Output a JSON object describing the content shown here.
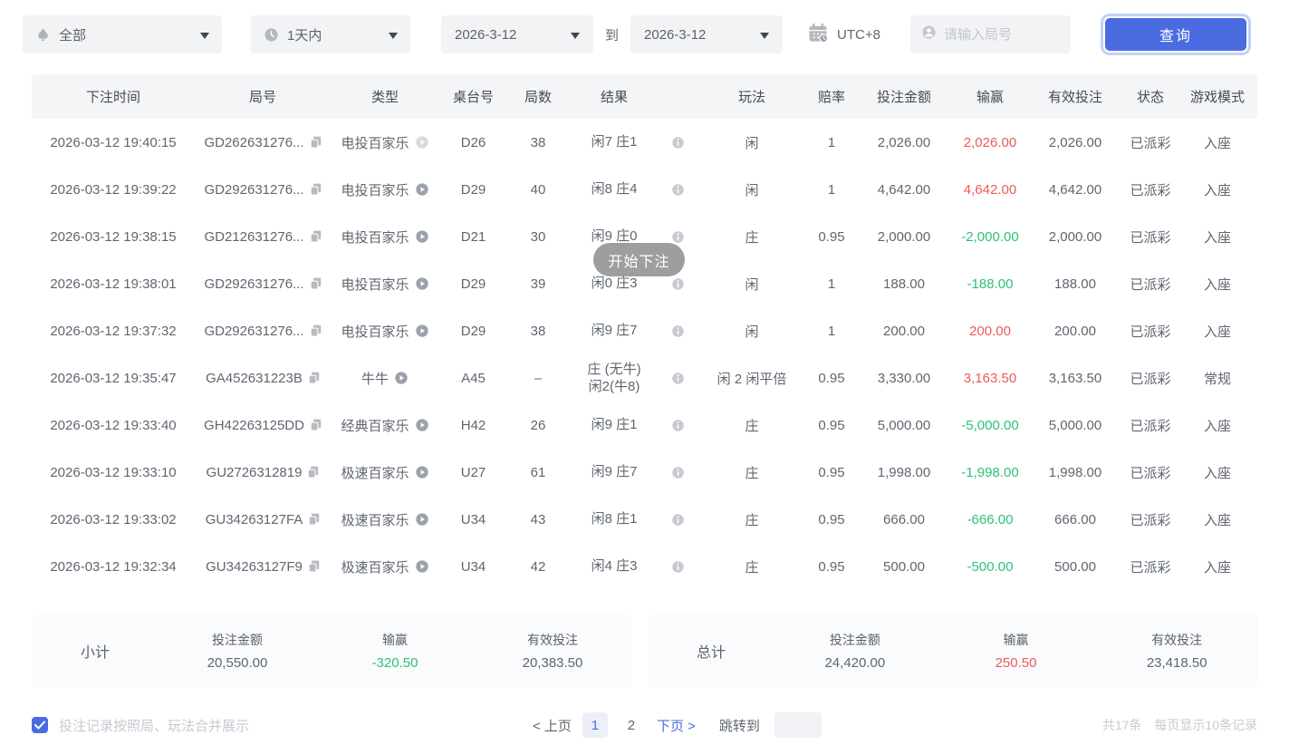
{
  "filters": {
    "game_type": "全部",
    "time_range": "1天内",
    "date_from": "2026-3-12",
    "to_label": "到",
    "date_to": "2026-3-12",
    "timezone": "UTC+8",
    "round_placeholder": "请输入局号",
    "search_button": "查询"
  },
  "toast": {
    "text": "开始下注"
  },
  "table": {
    "columns": [
      "下注时间",
      "局号",
      "类型",
      "桌台号",
      "局数",
      "结果",
      "",
      "玩法",
      "赔率",
      "投注金额",
      "输赢",
      "有效投注",
      "状态",
      "游戏模式"
    ],
    "rows": [
      {
        "time": "2026-03-12 19:40:15",
        "round": "GD262631276...",
        "type": "电投百家乐",
        "type_icon": "play-light",
        "table": "D26",
        "rounds": "38",
        "result": "闲7 庄1",
        "result2": "",
        "play": "闲",
        "odds": "1",
        "bet": "2,026.00",
        "winloss": "2,026.00",
        "winloss_color": "red",
        "valid": "2,026.00",
        "status": "已派彩",
        "mode": "入座"
      },
      {
        "time": "2026-03-12 19:39:22",
        "round": "GD292631276...",
        "type": "电投百家乐",
        "type_icon": "play",
        "table": "D29",
        "rounds": "40",
        "result": "闲8 庄4",
        "result2": "",
        "play": "闲",
        "odds": "1",
        "bet": "4,642.00",
        "winloss": "4,642.00",
        "winloss_color": "red",
        "valid": "4,642.00",
        "status": "已派彩",
        "mode": "入座"
      },
      {
        "time": "2026-03-12 19:38:15",
        "round": "GD212631276...",
        "type": "电投百家乐",
        "type_icon": "play",
        "table": "D21",
        "rounds": "30",
        "result": "闲9 庄0",
        "result2": "",
        "play": "庄",
        "odds": "0.95",
        "bet": "2,000.00",
        "winloss": "-2,000.00",
        "winloss_color": "green",
        "valid": "2,000.00",
        "status": "已派彩",
        "mode": "入座"
      },
      {
        "time": "2026-03-12 19:38:01",
        "round": "GD292631276...",
        "type": "电投百家乐",
        "type_icon": "play",
        "table": "D29",
        "rounds": "39",
        "result": "闲0 庄3",
        "result2": "",
        "play": "闲",
        "odds": "1",
        "bet": "188.00",
        "winloss": "-188.00",
        "winloss_color": "green",
        "valid": "188.00",
        "status": "已派彩",
        "mode": "入座"
      },
      {
        "time": "2026-03-12 19:37:32",
        "round": "GD292631276...",
        "type": "电投百家乐",
        "type_icon": "play",
        "table": "D29",
        "rounds": "38",
        "result": "闲9 庄7",
        "result2": "",
        "play": "闲",
        "odds": "1",
        "bet": "200.00",
        "winloss": "200.00",
        "winloss_color": "red",
        "valid": "200.00",
        "status": "已派彩",
        "mode": "入座"
      },
      {
        "time": "2026-03-12 19:35:47",
        "round": "GA452631223B",
        "type": "牛牛",
        "type_icon": "play",
        "table": "A45",
        "rounds": "–",
        "result": "庄 (无牛)",
        "result2": "闲2(牛8)",
        "play": "闲 2 闲平倍",
        "odds": "0.95",
        "bet": "3,330.00",
        "winloss": "3,163.50",
        "winloss_color": "red",
        "valid": "3,163.50",
        "status": "已派彩",
        "mode": "常规"
      },
      {
        "time": "2026-03-12 19:33:40",
        "round": "GH42263125DD",
        "type": "经典百家乐",
        "type_icon": "play",
        "table": "H42",
        "rounds": "26",
        "result": "闲9 庄1",
        "result2": "",
        "play": "庄",
        "odds": "0.95",
        "bet": "5,000.00",
        "winloss": "-5,000.00",
        "winloss_color": "green",
        "valid": "5,000.00",
        "status": "已派彩",
        "mode": "入座"
      },
      {
        "time": "2026-03-12 19:33:10",
        "round": "GU2726312819",
        "type": "极速百家乐",
        "type_icon": "play",
        "table": "U27",
        "rounds": "61",
        "result": "闲9 庄7",
        "result2": "",
        "play": "庄",
        "odds": "0.95",
        "bet": "1,998.00",
        "winloss": "-1,998.00",
        "winloss_color": "green",
        "valid": "1,998.00",
        "status": "已派彩",
        "mode": "入座"
      },
      {
        "time": "2026-03-12 19:33:02",
        "round": "GU34263127FA",
        "type": "极速百家乐",
        "type_icon": "play",
        "table": "U34",
        "rounds": "43",
        "result": "闲8 庄1",
        "result2": "",
        "play": "庄",
        "odds": "0.95",
        "bet": "666.00",
        "winloss": "-666.00",
        "winloss_color": "green",
        "valid": "666.00",
        "status": "已派彩",
        "mode": "入座"
      },
      {
        "time": "2026-03-12 19:32:34",
        "round": "GU34263127F9",
        "type": "极速百家乐",
        "type_icon": "play",
        "table": "U34",
        "rounds": "42",
        "result": "闲4 庄3",
        "result2": "",
        "play": "庄",
        "odds": "0.95",
        "bet": "500.00",
        "winloss": "-500.00",
        "winloss_color": "green",
        "valid": "500.00",
        "status": "已派彩",
        "mode": "入座"
      }
    ]
  },
  "summary": {
    "subtotal": {
      "title": "小计",
      "items": [
        {
          "label": "投注金额",
          "value": "20,550.00",
          "color": "default"
        },
        {
          "label": "输赢",
          "value": "-320.50",
          "color": "green"
        },
        {
          "label": "有效投注",
          "value": "20,383.50",
          "color": "default"
        }
      ]
    },
    "total": {
      "title": "总计",
      "items": [
        {
          "label": "投注金额",
          "value": "24,420.00",
          "color": "default"
        },
        {
          "label": "输赢",
          "value": "250.50",
          "color": "red"
        },
        {
          "label": "有效投注",
          "value": "23,418.50",
          "color": "default"
        }
      ]
    }
  },
  "footer": {
    "merge_label": "投注记录按照局、玩法合并展示",
    "prev": "< 上页",
    "pages": [
      "1",
      "2"
    ],
    "next": "下页 >",
    "jump_label": "跳转到",
    "total_count": "共17条",
    "per_page": "每页显示10条记录"
  },
  "colors": {
    "red": "#ec5a5a",
    "green": "#2dc178",
    "default": "#5f6670",
    "accent": "#4a6ce0"
  }
}
